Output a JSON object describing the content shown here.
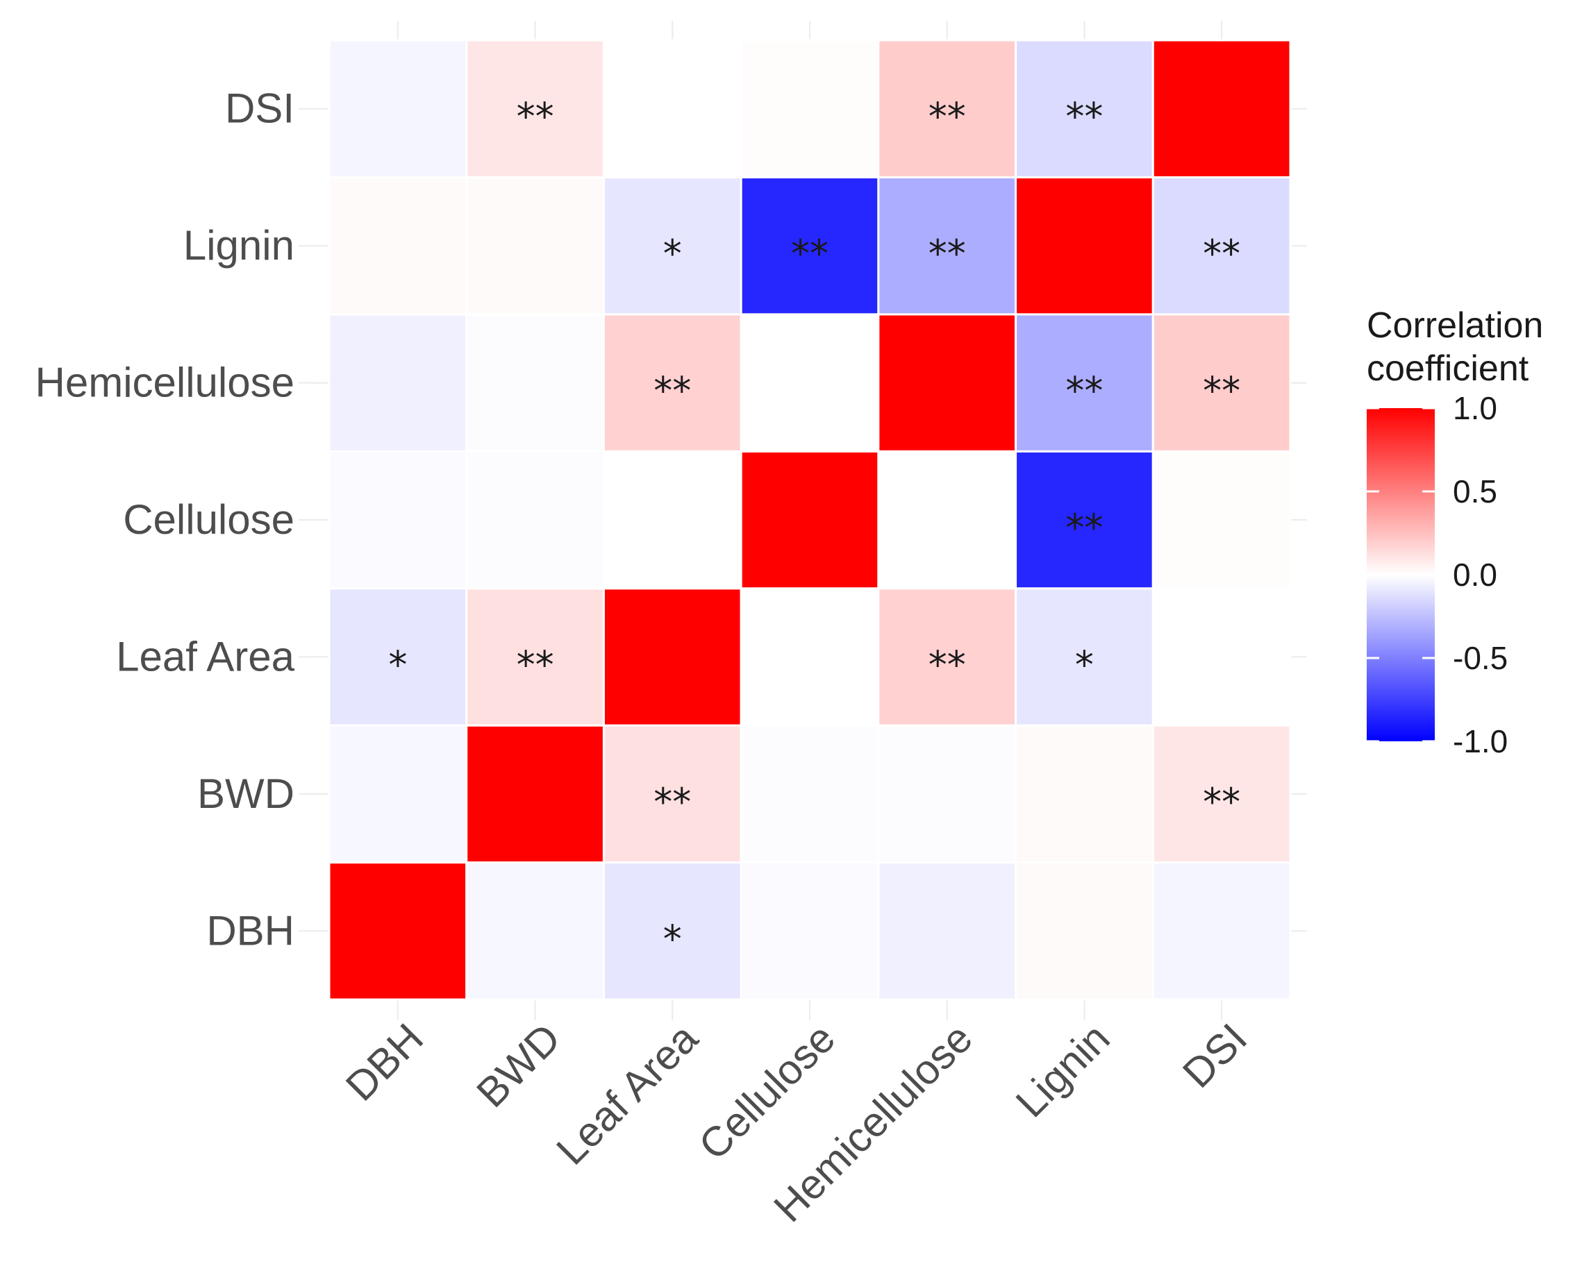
{
  "chart_data": {
    "type": "heatmap",
    "x_categories": [
      "DBH",
      "BWD",
      "Leaf Area",
      "Cellulose",
      "Hemicellulose",
      "Lignin",
      "DSI"
    ],
    "y_categories": [
      "DBH",
      "BWD",
      "Leaf Area",
      "Cellulose",
      "Hemicellulose",
      "Lignin",
      "DSI"
    ],
    "values": [
      [
        1.0,
        -0.03,
        -0.1,
        -0.02,
        -0.06,
        0.02,
        -0.04
      ],
      [
        -0.03,
        1.0,
        0.12,
        -0.01,
        -0.01,
        0.02,
        0.1
      ],
      [
        -0.1,
        0.12,
        1.0,
        0.0,
        0.18,
        -0.1,
        0.0
      ],
      [
        -0.02,
        -0.01,
        0.0,
        1.0,
        0.0,
        -0.85,
        0.01
      ],
      [
        -0.06,
        -0.01,
        0.18,
        0.0,
        1.0,
        -0.32,
        0.2
      ],
      [
        0.02,
        0.02,
        -0.1,
        -0.85,
        -0.32,
        1.0,
        -0.14
      ],
      [
        -0.04,
        0.1,
        0.0,
        0.01,
        0.2,
        -0.14,
        1.0
      ]
    ],
    "significance": [
      [
        "",
        "",
        "*",
        "",
        "",
        "",
        ""
      ],
      [
        "",
        "",
        "**",
        "",
        "",
        "",
        "**"
      ],
      [
        "*",
        "**",
        "",
        "",
        "**",
        "*",
        ""
      ],
      [
        "",
        "",
        "",
        "",
        "",
        "**",
        ""
      ],
      [
        "",
        "",
        "**",
        "",
        "",
        "**",
        "**"
      ],
      [
        "",
        "",
        "*",
        "**",
        "**",
        "",
        "**"
      ],
      [
        "",
        "**",
        "",
        "",
        "**",
        "**",
        ""
      ]
    ],
    "color_scale": {
      "low": "#0000ff",
      "mid": "#ffffff",
      "high": "#ff0000",
      "limits": [
        -1,
        1
      ]
    },
    "legend": {
      "title_line1": "Correlation",
      "title_line2": "coefficient",
      "breaks": [
        "1.0",
        "0.5",
        "0.0",
        "-0.5",
        "-1.0"
      ],
      "break_values": [
        1.0,
        0.5,
        0.0,
        -0.5,
        -1.0
      ],
      "position": "right"
    },
    "xlabel": "",
    "ylabel": "",
    "grid": true
  }
}
